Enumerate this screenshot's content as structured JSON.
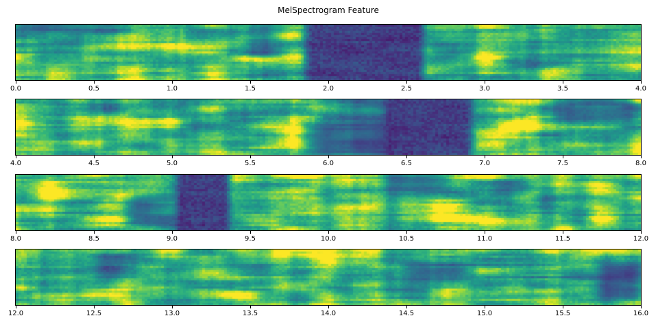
{
  "chart_data": {
    "type": "heatmap",
    "subtype": "mel_spectrogram",
    "title": "MelSpectrogram Feature",
    "colormap": "viridis",
    "x_unit": "seconds",
    "legend": "none",
    "grid": false,
    "panels": [
      {
        "x_range": [
          0.0,
          4.0
        ],
        "tick_labels": [
          "0.0",
          "0.5",
          "1.0",
          "1.5",
          "2.0",
          "2.5",
          "3.0",
          "3.5",
          "4.0"
        ],
        "silence_intervals": [
          [
            1.86,
            2.61
          ]
        ],
        "dim_patches": [
          [
            1.5,
            1.66,
            0.0,
            0.6,
            0.45
          ],
          [
            0.05,
            0.75,
            0.0,
            0.14,
            0.35
          ]
        ]
      },
      {
        "x_range": [
          4.0,
          8.0
        ],
        "tick_labels": [
          "4.0",
          "4.5",
          "5.0",
          "5.5",
          "6.0",
          "6.5",
          "7.0",
          "7.5",
          "8.0"
        ],
        "silence_intervals": [
          [
            6.35,
            6.92
          ]
        ],
        "dim_patches": [
          [
            5.85,
            6.38,
            0.45,
            1.0,
            0.55
          ],
          [
            6.05,
            6.38,
            0.0,
            0.5,
            0.35
          ],
          [
            7.45,
            8.0,
            0.0,
            0.38,
            0.42
          ]
        ]
      },
      {
        "x_range": [
          8.0,
          12.0
        ],
        "tick_labels": [
          "8.0",
          "8.5",
          "9.0",
          "9.5",
          "10.0",
          "10.5",
          "11.0",
          "11.5",
          "12.0"
        ],
        "silence_intervals": [
          [
            9.02,
            9.37
          ]
        ],
        "dim_patches": [
          [
            8.72,
            9.04,
            0.35,
            0.9,
            0.5
          ],
          [
            10.38,
            10.78,
            0.0,
            0.32,
            0.45
          ],
          [
            11.05,
            11.3,
            0.1,
            0.4,
            0.3
          ]
        ]
      },
      {
        "x_range": [
          12.0,
          16.0
        ],
        "tick_labels": [
          "12.0",
          "12.5",
          "13.0",
          "13.5",
          "14.0",
          "14.5",
          "15.0",
          "15.5",
          "16.0"
        ],
        "silence_intervals": [],
        "dim_patches": [
          [
            15.72,
            16.0,
            0.25,
            0.9,
            0.55
          ],
          [
            15.55,
            16.0,
            0.3,
            0.55,
            0.35
          ],
          [
            14.5,
            14.9,
            0.2,
            0.6,
            0.38
          ],
          [
            13.35,
            13.6,
            0.0,
            0.45,
            0.3
          ],
          [
            12.55,
            12.75,
            0.1,
            0.5,
            0.28
          ]
        ]
      }
    ],
    "viridis_anchors": [
      "#440154",
      "#482878",
      "#3e4a89",
      "#31688e",
      "#26828e",
      "#1f9e89",
      "#35b779",
      "#6dcd59",
      "#b4de2c",
      "#fde725"
    ]
  }
}
